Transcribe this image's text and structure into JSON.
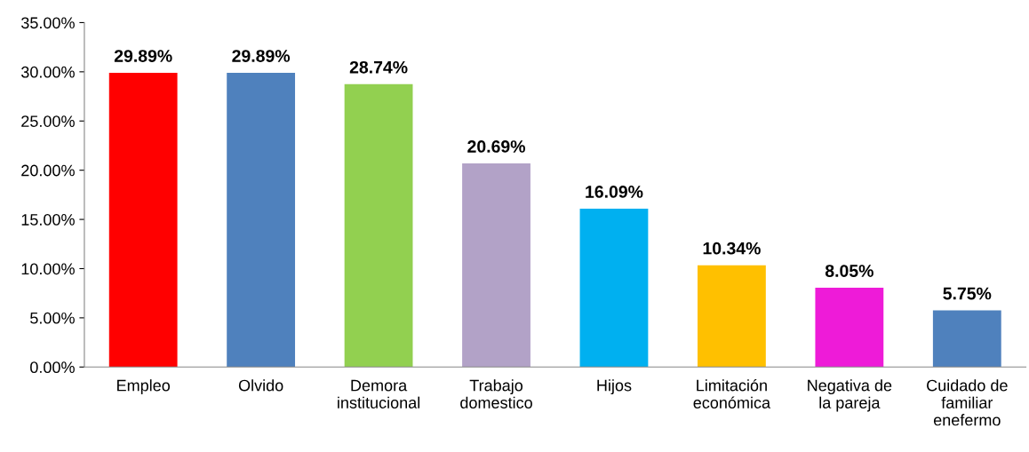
{
  "chart_data": {
    "type": "bar",
    "categories": [
      "Empleo",
      "Olvido",
      "Demora\ninstitucional",
      "Trabajo\ndomestico",
      "Hijos",
      "Limitación\neconómica",
      "Negativa de\nla pareja",
      "Cuidado de\nfamiliar\nenefermo"
    ],
    "values": [
      29.89,
      29.89,
      28.74,
      20.69,
      16.09,
      10.34,
      8.05,
      5.75
    ],
    "value_labels": [
      "29.89%",
      "29.89%",
      "28.74%",
      "20.69%",
      "16.09%",
      "10.34%",
      "8.05%",
      "5.75%"
    ],
    "colors": [
      "#ff0000",
      "#4f81bd",
      "#92d050",
      "#b2a2c7",
      "#00b0f0",
      "#ffc000",
      "#ee1bd8",
      "#4f81bd"
    ],
    "ylim": [
      0,
      35
    ],
    "yticks": [
      {
        "value": 0,
        "label": "0.00%"
      },
      {
        "value": 5,
        "label": "5.00%"
      },
      {
        "value": 10,
        "label": "10.00%"
      },
      {
        "value": 15,
        "label": "15.00%"
      },
      {
        "value": 20,
        "label": "20.00%"
      },
      {
        "value": 25,
        "label": "25.00%"
      },
      {
        "value": 30,
        "label": "30.00%"
      },
      {
        "value": 35,
        "label": "35.00%"
      }
    ],
    "grid": false,
    "legend": false
  }
}
